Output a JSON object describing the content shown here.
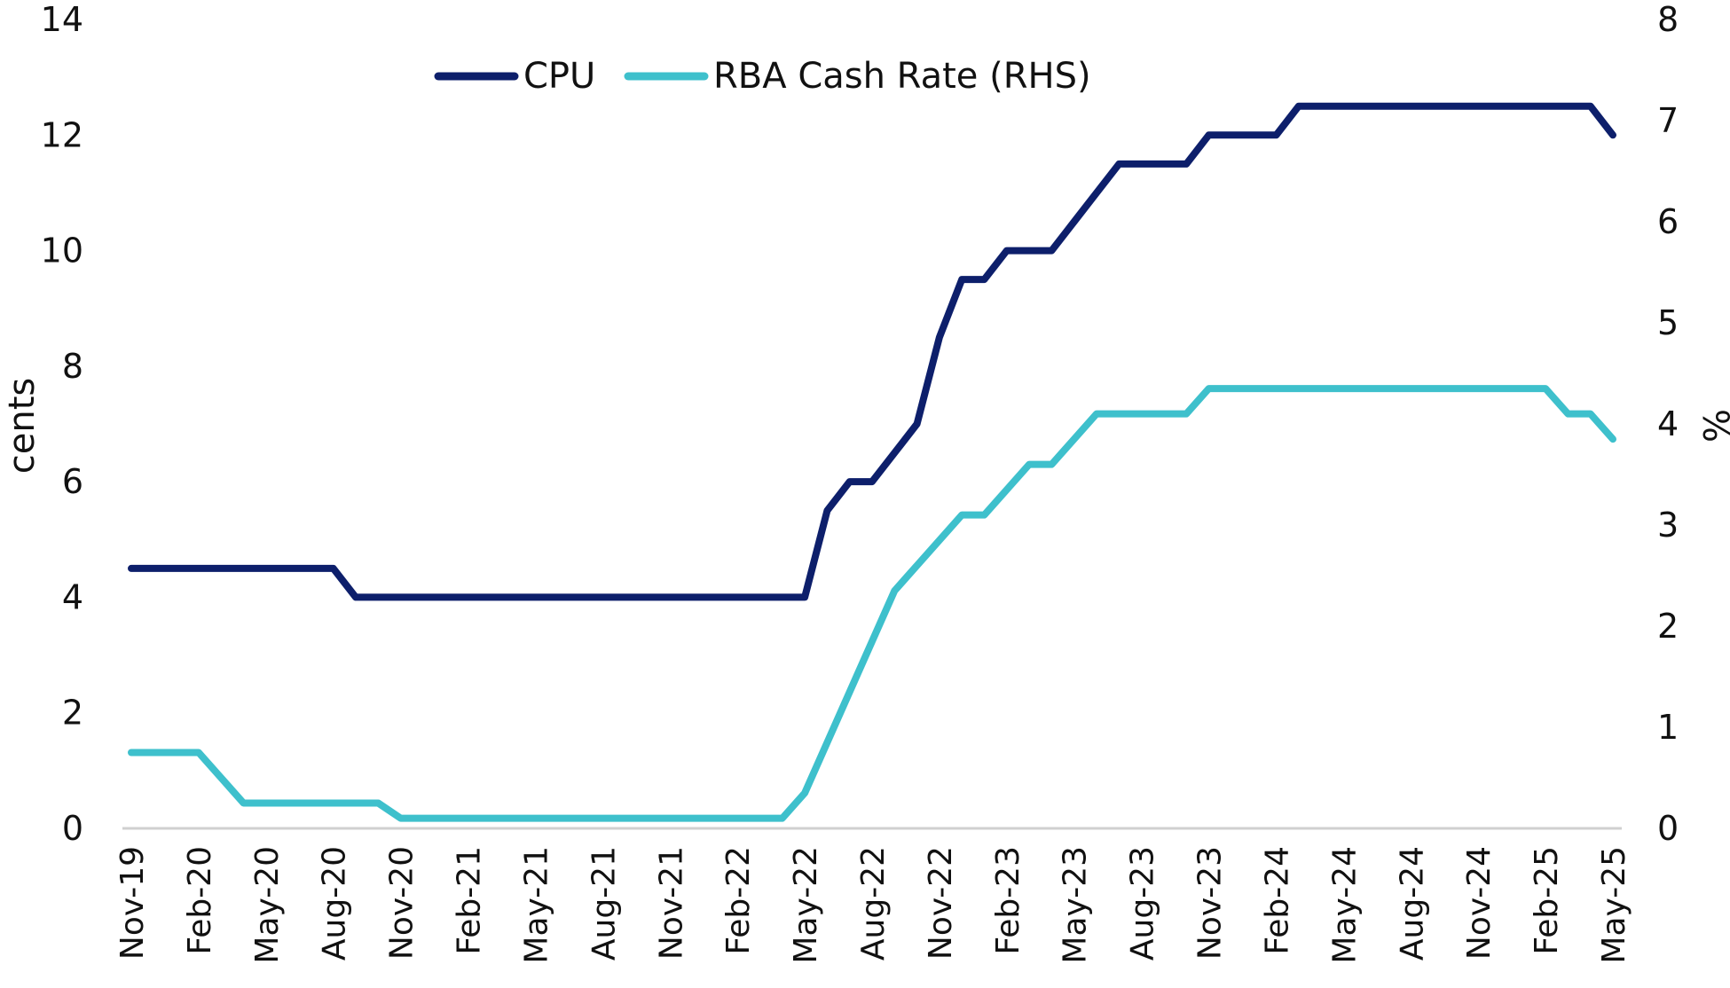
{
  "chart_data": {
    "type": "line",
    "title": "",
    "x_tick_labels": [
      "Nov-19",
      "Feb-20",
      "May-20",
      "Aug-20",
      "Nov-20",
      "Feb-21",
      "May-21",
      "Aug-21",
      "Nov-21",
      "Feb-22",
      "May-22",
      "Aug-22",
      "Nov-22",
      "Feb-23",
      "May-23",
      "Aug-23",
      "Nov-23",
      "Feb-24",
      "May-24",
      "Aug-24",
      "Nov-24",
      "Feb-25",
      "May-25"
    ],
    "x": [
      "Nov-19",
      "Dec-19",
      "Jan-20",
      "Feb-20",
      "Mar-20",
      "Apr-20",
      "May-20",
      "Jun-20",
      "Jul-20",
      "Aug-20",
      "Sep-20",
      "Oct-20",
      "Nov-20",
      "Dec-20",
      "Jan-21",
      "Feb-21",
      "Mar-21",
      "Apr-21",
      "May-21",
      "Jun-21",
      "Jul-21",
      "Aug-21",
      "Sep-21",
      "Oct-21",
      "Nov-21",
      "Dec-21",
      "Jan-22",
      "Feb-22",
      "Mar-22",
      "Apr-22",
      "May-22",
      "Jun-22",
      "Jul-22",
      "Aug-22",
      "Sep-22",
      "Oct-22",
      "Nov-22",
      "Dec-22",
      "Jan-23",
      "Feb-23",
      "Mar-23",
      "Apr-23",
      "May-23",
      "Jun-23",
      "Jul-23",
      "Aug-23",
      "Sep-23",
      "Oct-23",
      "Nov-23",
      "Dec-23",
      "Jan-24",
      "Feb-24",
      "Mar-24",
      "Apr-24",
      "May-24",
      "Jun-24",
      "Jul-24",
      "Aug-24",
      "Sep-24",
      "Oct-24",
      "Nov-24",
      "Dec-24",
      "Jan-25",
      "Feb-25",
      "Mar-25",
      "Apr-25",
      "May-25"
    ],
    "y_left": {
      "label": "cents",
      "ylim": [
        0,
        14
      ],
      "ticks": [
        "0",
        "2",
        "4",
        "6",
        "8",
        "10",
        "12",
        "14"
      ]
    },
    "y_right": {
      "label": "%",
      "ylim": [
        0,
        8
      ],
      "ticks": [
        "0",
        "1",
        "2",
        "3",
        "4",
        "5",
        "6",
        "7",
        "8"
      ]
    },
    "series": [
      {
        "name": "CPU",
        "axis": "left",
        "color": "#0d1f6b",
        "values": [
          4.5,
          4.5,
          4.5,
          4.5,
          4.5,
          4.5,
          4.5,
          4.5,
          4.5,
          4.5,
          4.0,
          4.0,
          4.0,
          4.0,
          4.0,
          4.0,
          4.0,
          4.0,
          4.0,
          4.0,
          4.0,
          4.0,
          4.0,
          4.0,
          4.0,
          4.0,
          4.0,
          4.0,
          4.0,
          4.0,
          4.0,
          5.5,
          6.0,
          6.0,
          6.5,
          7.0,
          8.5,
          9.5,
          9.5,
          10.0,
          10.0,
          10.0,
          10.5,
          11.0,
          11.5,
          11.5,
          11.5,
          11.5,
          12.0,
          12.0,
          12.0,
          12.0,
          12.5,
          12.5,
          12.5,
          12.5,
          12.5,
          12.5,
          12.5,
          12.5,
          12.5,
          12.5,
          12.5,
          12.5,
          12.5,
          12.5,
          12.0
        ]
      },
      {
        "name": "RBA Cash Rate (RHS)",
        "axis": "right",
        "color": "#3ec0cc",
        "values": [
          0.75,
          0.75,
          0.75,
          0.75,
          0.5,
          0.25,
          0.25,
          0.25,
          0.25,
          0.25,
          0.25,
          0.25,
          0.1,
          0.1,
          0.1,
          0.1,
          0.1,
          0.1,
          0.1,
          0.1,
          0.1,
          0.1,
          0.1,
          0.1,
          0.1,
          0.1,
          0.1,
          0.1,
          0.1,
          0.1,
          0.35,
          0.85,
          1.35,
          1.85,
          2.35,
          2.6,
          2.85,
          3.1,
          3.1,
          3.35,
          3.6,
          3.6,
          3.85,
          4.1,
          4.1,
          4.1,
          4.1,
          4.1,
          4.35,
          4.35,
          4.35,
          4.35,
          4.35,
          4.35,
          4.35,
          4.35,
          4.35,
          4.35,
          4.35,
          4.35,
          4.35,
          4.35,
          4.35,
          4.35,
          4.1,
          4.1,
          3.85
        ]
      }
    ],
    "grid": false,
    "legend_position": "top-center"
  }
}
